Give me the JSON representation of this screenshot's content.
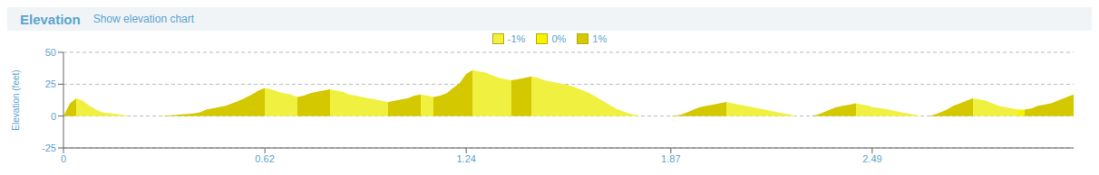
{
  "chart_data": {
    "type": "area",
    "title": "Elevation",
    "subtitle": "Show elevation chart",
    "ylabel": "Elevation (feet)",
    "xlim": [
      0,
      3.11
    ],
    "ylim": [
      -25,
      50
    ],
    "xticks": [
      0,
      0.62,
      1.24,
      1.87,
      2.49
    ],
    "yticks": [
      -25,
      0,
      25,
      50
    ],
    "grid": true,
    "legend": "top",
    "series": [
      {
        "name": "-1%",
        "color": "#f0f040"
      },
      {
        "name": "0%",
        "color": "#f5f500"
      },
      {
        "name": "1%",
        "color": "#d4c800"
      }
    ],
    "x": [
      0.0,
      0.02,
      0.04,
      0.06,
      0.08,
      0.1,
      0.12,
      0.15,
      0.18,
      0.2,
      0.25,
      0.3,
      0.35,
      0.4,
      0.42,
      0.44,
      0.5,
      0.55,
      0.58,
      0.6,
      0.62,
      0.64,
      0.66,
      0.68,
      0.7,
      0.72,
      0.74,
      0.76,
      0.78,
      0.8,
      0.82,
      0.84,
      0.86,
      0.88,
      0.9,
      0.92,
      0.94,
      0.96,
      0.98,
      1.0,
      1.02,
      1.04,
      1.06,
      1.08,
      1.1,
      1.12,
      1.14,
      1.16,
      1.18,
      1.2,
      1.22,
      1.24,
      1.26,
      1.28,
      1.3,
      1.32,
      1.34,
      1.36,
      1.38,
      1.4,
      1.42,
      1.44,
      1.46,
      1.48,
      1.5,
      1.52,
      1.54,
      1.56,
      1.58,
      1.6,
      1.62,
      1.64,
      1.66,
      1.68,
      1.7,
      1.72,
      1.74,
      1.76,
      1.78,
      1.8,
      1.82,
      1.84,
      1.86,
      1.87,
      1.9,
      1.92,
      1.94,
      1.96,
      1.98,
      2.0,
      2.02,
      2.04,
      2.06,
      2.08,
      2.1,
      2.12,
      2.14,
      2.16,
      2.18,
      2.2,
      2.22,
      2.24,
      2.26,
      2.28,
      2.3,
      2.32,
      2.34,
      2.36,
      2.38,
      2.4,
      2.42,
      2.44,
      2.46,
      2.48,
      2.49,
      2.52,
      2.54,
      2.56,
      2.58,
      2.6,
      2.62,
      2.64,
      2.66,
      2.68,
      2.7,
      2.72,
      2.74,
      2.76,
      2.78,
      2.8,
      2.82,
      2.84,
      2.86,
      2.88,
      2.9,
      2.92,
      2.94,
      2.96,
      2.98,
      3.0,
      3.02,
      3.04,
      3.06,
      3.08,
      3.1,
      3.11
    ],
    "values": [
      0,
      10,
      14,
      12,
      8,
      5,
      3,
      2,
      1,
      0,
      0,
      0,
      1,
      2,
      3,
      5,
      8,
      13,
      17,
      20,
      22,
      21,
      19,
      18,
      17,
      15,
      16,
      18,
      19,
      20,
      21,
      20,
      19,
      17,
      16,
      15,
      14,
      13,
      12,
      11,
      12,
      13,
      14,
      16,
      17,
      16,
      15,
      16,
      18,
      22,
      26,
      33,
      36,
      35,
      34,
      32,
      30,
      29,
      28,
      29,
      30,
      31,
      30,
      28,
      27,
      26,
      25,
      24,
      22,
      20,
      18,
      15,
      12,
      9,
      6,
      4,
      2,
      1,
      0,
      0,
      0,
      0,
      0,
      0,
      1,
      3,
      5,
      7,
      8,
      9,
      10,
      11,
      10,
      9,
      8,
      7,
      6,
      5,
      4,
      3,
      2,
      1,
      0,
      0,
      0,
      1,
      3,
      5,
      7,
      8,
      9,
      10,
      9,
      8,
      7,
      6,
      5,
      4,
      3,
      2,
      1,
      0,
      0,
      1,
      3,
      5,
      8,
      10,
      12,
      14,
      13,
      12,
      10,
      8,
      7,
      6,
      5,
      5,
      6,
      8,
      9,
      10,
      12,
      14,
      16,
      17
    ]
  }
}
